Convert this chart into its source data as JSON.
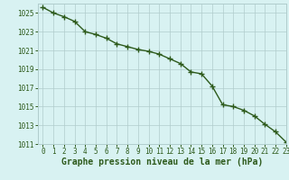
{
  "x": [
    0,
    1,
    2,
    3,
    4,
    5,
    6,
    7,
    8,
    9,
    10,
    11,
    12,
    13,
    14,
    15,
    16,
    17,
    18,
    19,
    20,
    21,
    22,
    23
  ],
  "y": [
    1025.6,
    1025.0,
    1024.6,
    1024.1,
    1023.0,
    1022.7,
    1022.3,
    1021.7,
    1021.4,
    1021.1,
    1020.9,
    1020.6,
    1020.1,
    1019.6,
    1018.7,
    1018.5,
    1017.2,
    1015.2,
    1015.0,
    1014.6,
    1014.0,
    1013.1,
    1012.3,
    1011.2
  ],
  "ylim": [
    1011,
    1026
  ],
  "xlim": [
    -0.5,
    23
  ],
  "yticks": [
    1011,
    1013,
    1015,
    1017,
    1019,
    1021,
    1023,
    1025
  ],
  "xticks": [
    0,
    1,
    2,
    3,
    4,
    5,
    6,
    7,
    8,
    9,
    10,
    11,
    12,
    13,
    14,
    15,
    16,
    17,
    18,
    19,
    20,
    21,
    22,
    23
  ],
  "xlabel": "Graphe pression niveau de la mer (hPa)",
  "line_color": "#2d5a1b",
  "marker": "+",
  "marker_size": 4,
  "marker_linewidth": 1.0,
  "bg_color": "#d8f2f2",
  "grid_color": "#b0cccc",
  "tick_color": "#2d5a1b",
  "label_color": "#2d5a1b",
  "tick_fontsize": 5.5,
  "xlabel_fontsize": 7.0,
  "line_width": 1.0
}
